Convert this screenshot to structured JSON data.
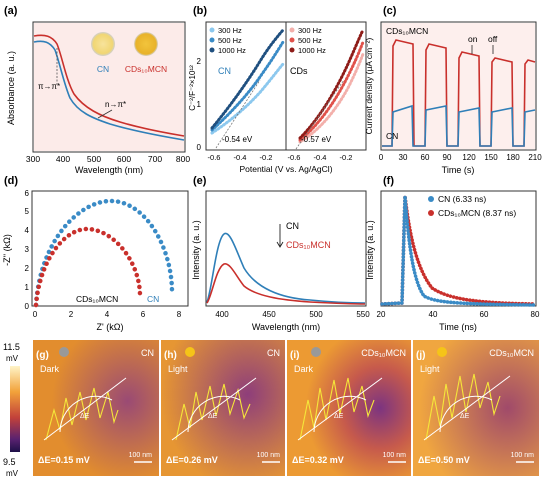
{
  "colors": {
    "cn_blue": "#2f7fb8",
    "cd_red": "#c9302c",
    "light_blue": "#6fb7e6",
    "light_red": "#ef8f89",
    "panel_bg": "#fbe2df",
    "map_orange": "#e3862a",
    "map_purple": "#6b2e7f"
  },
  "a": {
    "label": "(a)",
    "ylabel": "Absorbance (a. u.)",
    "xlabel": "Wavelength (nm)",
    "xticks": [
      "300",
      "400",
      "500",
      "600",
      "700",
      "800"
    ],
    "pi_label": "π→π*",
    "n_label": "n→π*",
    "cn_label": "CN",
    "cd_label": "CDs₁₀MCN"
  },
  "b": {
    "label": "(b)",
    "ylabel": "C⁻²/F⁻²×10¹²",
    "xlabel": "Potential (V vs. Ag/AgCl)",
    "yticks": [
      "0",
      "1",
      "2"
    ],
    "xticks": [
      "-0.6",
      "-0.4",
      "-0.2",
      "-0.6",
      "-0.4",
      "-0.2"
    ],
    "left_title": "CN",
    "right_title": "CDs",
    "legend": [
      "300 Hz",
      "500 Hz",
      "1000 Hz"
    ],
    "left_fb": "-0.54 eV",
    "right_fb": "-0.57 eV"
  },
  "c": {
    "label": "(c)",
    "ylabel": "Current density (μA cm⁻²)",
    "xlabel": "Time (s)",
    "xticks": [
      "0",
      "30",
      "60",
      "90",
      "120",
      "150",
      "180",
      "210"
    ],
    "cd_label": "CDs₁₀MCN",
    "cn_label": "CN",
    "on": "on",
    "off": "off"
  },
  "d": {
    "label": "(d)",
    "ylabel": "-Z'' (kΩ)",
    "xlabel": "Z' (kΩ)",
    "yticks": [
      "0",
      "1",
      "2",
      "3",
      "4",
      "5",
      "6"
    ],
    "xticks": [
      "0",
      "2",
      "4",
      "6",
      "8"
    ],
    "cd_label": "CDs₁₀MCN",
    "cn_label": "CN"
  },
  "e": {
    "label": "(e)",
    "ylabel": "Intensity (a. u.)",
    "xlabel": "Wavelength (nm)",
    "xticks": [
      "400",
      "450",
      "500",
      "550"
    ],
    "cn_label": "CN",
    "cd_label": "CDs₁₀MCN"
  },
  "f": {
    "label": "(f)",
    "ylabel": "Intensity (a. u.)",
    "xlabel": "Time (ns)",
    "xticks": [
      "20",
      "40",
      "60",
      "80"
    ],
    "legend": [
      "CN (6.33 ns)",
      "CDs₁₀MCN (8.37 ns)"
    ]
  },
  "maps": {
    "scale_top": "11.5",
    "scale_unit_top": "mV",
    "scale_bottom": "9.5",
    "scale_unit_bottom": "mV",
    "panels": [
      {
        "label": "(g)",
        "sample": "CN",
        "cond": "Dark",
        "delta": "ΔE=0.15 mV",
        "scale": "100 nm"
      },
      {
        "label": "(h)",
        "sample": "CN",
        "cond": "Light",
        "delta": "ΔE=0.26 mV",
        "scale": "100 nm"
      },
      {
        "label": "(i)",
        "sample": "CDs₁₀MCN",
        "cond": "Dark",
        "delta": "ΔE=0.32 mV",
        "scale": "100 nm"
      },
      {
        "label": "(j)",
        "sample": "CDs₁₀MCN",
        "cond": "Light",
        "delta": "ΔE=0.50 mV",
        "scale": "100 nm"
      }
    ],
    "arc_label": "ΔE"
  }
}
